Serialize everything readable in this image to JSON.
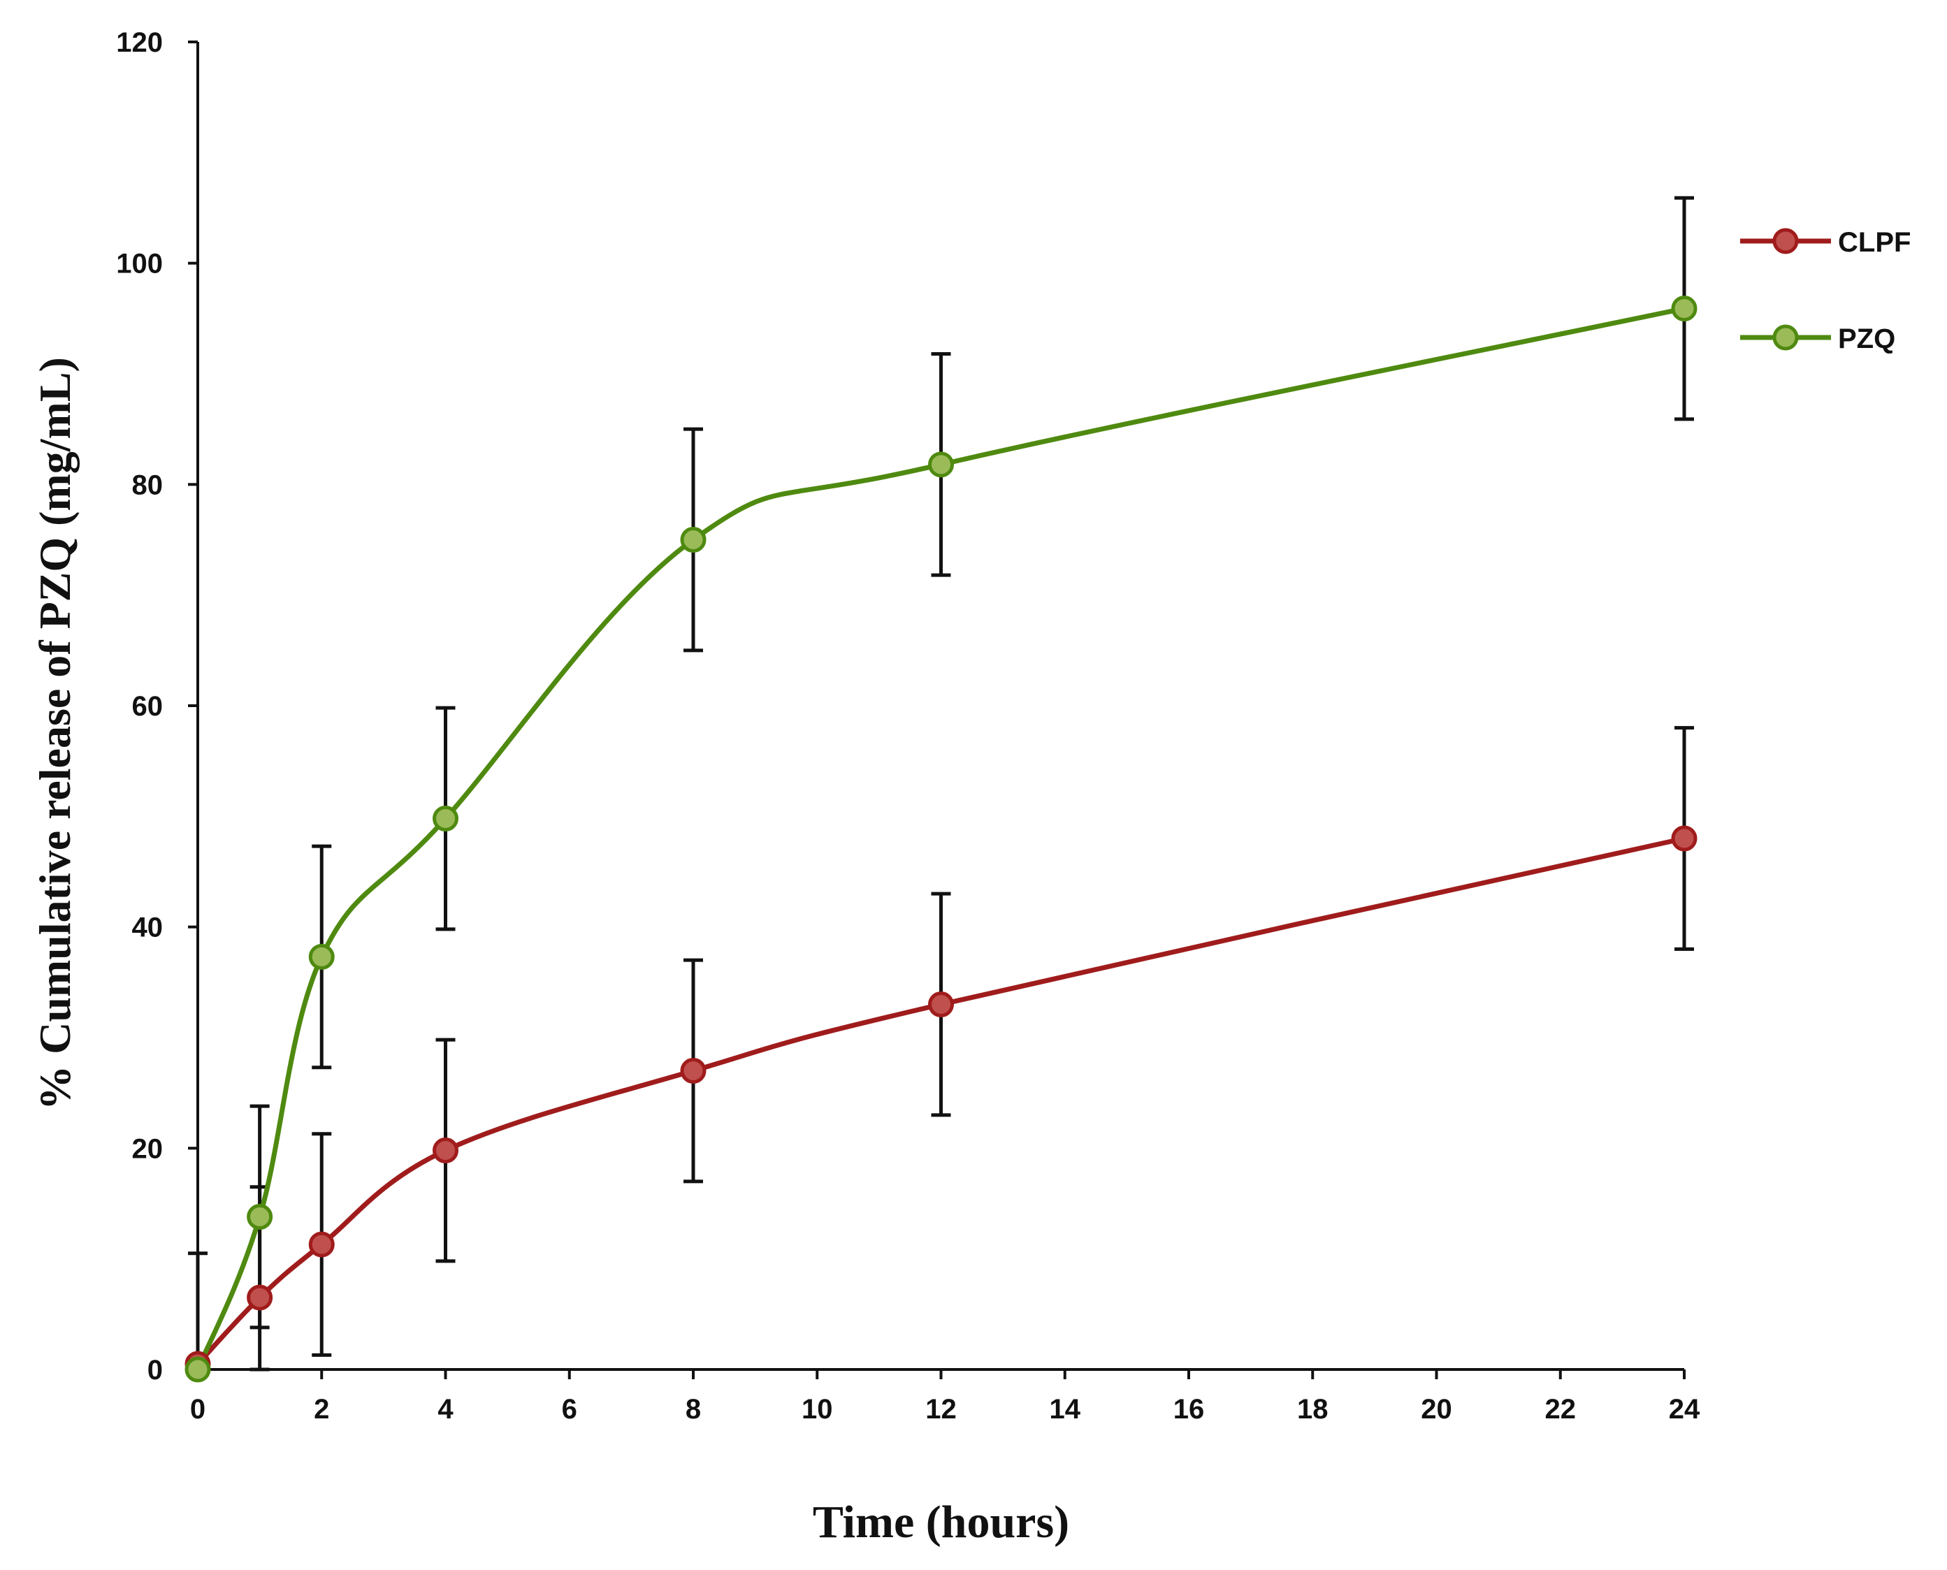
{
  "chart_data": {
    "type": "line",
    "title": "",
    "xlabel": "Time (hours)",
    "ylabel": "% Cumulative release of PZQ (mg/mL)",
    "xlim": [
      0,
      24
    ],
    "ylim": [
      0,
      120
    ],
    "xticks": [
      0,
      2,
      4,
      6,
      8,
      10,
      12,
      14,
      16,
      18,
      20,
      22,
      24
    ],
    "yticks": [
      0,
      20,
      40,
      60,
      80,
      100,
      120
    ],
    "grid": false,
    "legend_position": "right",
    "series": [
      {
        "name": "CLPF",
        "color": "#a01c1c",
        "marker_fill": "#c0504d",
        "x": [
          0,
          1,
          2,
          4,
          8,
          12,
          24
        ],
        "y": [
          0.5,
          6.5,
          11.3,
          19.8,
          27.0,
          33.0,
          48.0
        ],
        "error": [
          10,
          10,
          10,
          10,
          10,
          10,
          10
        ]
      },
      {
        "name": "PZQ",
        "color": "#4f8a10",
        "marker_fill": "#9bbb59",
        "x": [
          0,
          1,
          2,
          4,
          8,
          12,
          24
        ],
        "y": [
          0,
          13.8,
          37.3,
          49.8,
          75.0,
          81.8,
          95.9
        ],
        "error": [
          0,
          10,
          10,
          10,
          10,
          10,
          10
        ]
      }
    ]
  }
}
